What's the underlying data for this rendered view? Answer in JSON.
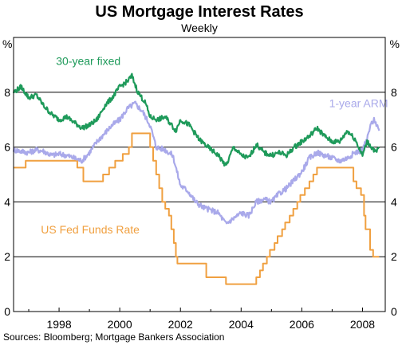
{
  "chart_data": {
    "type": "line",
    "title": "US Mortgage Interest Rates",
    "subtitle": "Weekly",
    "y_unit": "%",
    "ylim": [
      0,
      10
    ],
    "yticks": [
      "0",
      "2",
      "4",
      "6",
      "8"
    ],
    "xlim": [
      1996.5,
      2008.75
    ],
    "xticks": [
      {
        "x": 1998,
        "label": "1998"
      },
      {
        "x": 2000,
        "label": "2000"
      },
      {
        "x": 2002,
        "label": "2002"
      },
      {
        "x": 2004,
        "label": "2004"
      },
      {
        "x": 2006,
        "label": "2006"
      },
      {
        "x": 2008,
        "label": "2008"
      }
    ],
    "grid": true,
    "colors": {
      "fixed": "#1e9a5a",
      "arm": "#a9a9ea",
      "fed": "#f0a040",
      "grid": "#000000"
    },
    "series": [
      {
        "key": "fixed",
        "name": "30-year fixed",
        "jitter": 0.09,
        "points": [
          [
            1996.5,
            8.0
          ],
          [
            1996.75,
            8.2
          ],
          [
            1997.0,
            7.8
          ],
          [
            1997.25,
            7.9
          ],
          [
            1997.5,
            7.5
          ],
          [
            1997.75,
            7.2
          ],
          [
            1998.0,
            7.0
          ],
          [
            1998.25,
            7.1
          ],
          [
            1998.5,
            6.9
          ],
          [
            1998.75,
            6.7
          ],
          [
            1999.0,
            6.8
          ],
          [
            1999.25,
            7.0
          ],
          [
            1999.5,
            7.5
          ],
          [
            1999.75,
            7.8
          ],
          [
            2000.0,
            8.2
          ],
          [
            2000.25,
            8.4
          ],
          [
            2000.4,
            8.6
          ],
          [
            2000.6,
            8.0
          ],
          [
            2000.85,
            7.6
          ],
          [
            2001.0,
            7.1
          ],
          [
            2001.25,
            7.0
          ],
          [
            2001.5,
            7.1
          ],
          [
            2001.85,
            6.6
          ],
          [
            2002.0,
            7.0
          ],
          [
            2002.3,
            6.8
          ],
          [
            2002.6,
            6.3
          ],
          [
            2002.9,
            6.0
          ],
          [
            2003.25,
            5.7
          ],
          [
            2003.5,
            5.3
          ],
          [
            2003.75,
            6.0
          ],
          [
            2004.0,
            5.7
          ],
          [
            2004.25,
            5.6
          ],
          [
            2004.5,
            6.1
          ],
          [
            2004.75,
            5.8
          ],
          [
            2005.0,
            5.7
          ],
          [
            2005.25,
            5.8
          ],
          [
            2005.5,
            5.7
          ],
          [
            2005.75,
            6.0
          ],
          [
            2006.0,
            6.2
          ],
          [
            2006.25,
            6.4
          ],
          [
            2006.5,
            6.7
          ],
          [
            2006.75,
            6.4
          ],
          [
            2007.0,
            6.2
          ],
          [
            2007.25,
            6.2
          ],
          [
            2007.5,
            6.6
          ],
          [
            2007.75,
            6.3
          ],
          [
            2008.0,
            5.7
          ],
          [
            2008.15,
            6.2
          ],
          [
            2008.3,
            6.0
          ],
          [
            2008.45,
            5.8
          ],
          [
            2008.55,
            6.0
          ]
        ]
      },
      {
        "key": "arm",
        "name": "1-year ARM",
        "jitter": 0.1,
        "points": [
          [
            1996.5,
            5.9
          ],
          [
            1996.75,
            5.85
          ],
          [
            1997.0,
            5.8
          ],
          [
            1997.25,
            5.9
          ],
          [
            1997.5,
            5.85
          ],
          [
            1997.75,
            5.7
          ],
          [
            1998.0,
            5.75
          ],
          [
            1998.25,
            5.7
          ],
          [
            1998.5,
            5.6
          ],
          [
            1998.75,
            5.5
          ],
          [
            1999.0,
            5.8
          ],
          [
            1999.25,
            6.2
          ],
          [
            1999.5,
            6.5
          ],
          [
            1999.75,
            6.8
          ],
          [
            2000.0,
            7.0
          ],
          [
            2000.25,
            7.4
          ],
          [
            2000.5,
            7.6
          ],
          [
            2000.75,
            7.3
          ],
          [
            2001.0,
            6.8
          ],
          [
            2001.2,
            6.0
          ],
          [
            2001.5,
            5.9
          ],
          [
            2001.75,
            5.7
          ],
          [
            2002.0,
            4.6
          ],
          [
            2002.25,
            4.4
          ],
          [
            2002.5,
            4.0
          ],
          [
            2002.75,
            3.8
          ],
          [
            2003.0,
            3.7
          ],
          [
            2003.25,
            3.6
          ],
          [
            2003.5,
            3.2
          ],
          [
            2003.75,
            3.4
          ],
          [
            2004.0,
            3.6
          ],
          [
            2004.25,
            3.5
          ],
          [
            2004.5,
            4.0
          ],
          [
            2004.75,
            4.1
          ],
          [
            2005.0,
            4.0
          ],
          [
            2005.25,
            4.3
          ],
          [
            2005.5,
            4.5
          ],
          [
            2005.75,
            4.8
          ],
          [
            2006.0,
            5.1
          ],
          [
            2006.25,
            5.6
          ],
          [
            2006.5,
            5.8
          ],
          [
            2006.75,
            5.7
          ],
          [
            2007.0,
            5.6
          ],
          [
            2007.25,
            5.5
          ],
          [
            2007.5,
            5.6
          ],
          [
            2007.75,
            5.8
          ],
          [
            2008.0,
            5.9
          ],
          [
            2008.15,
            6.3
          ],
          [
            2008.3,
            6.9
          ],
          [
            2008.4,
            7.0
          ],
          [
            2008.55,
            6.6
          ]
        ]
      },
      {
        "key": "fed",
        "name": "US Fed Funds Rate",
        "step": true,
        "points": [
          [
            1996.5,
            5.25
          ],
          [
            1996.9,
            5.25
          ],
          [
            1996.9,
            5.5
          ],
          [
            1998.6,
            5.5
          ],
          [
            1998.6,
            5.25
          ],
          [
            1998.8,
            5.25
          ],
          [
            1998.8,
            4.75
          ],
          [
            1999.45,
            4.75
          ],
          [
            1999.45,
            5.0
          ],
          [
            1999.65,
            5.0
          ],
          [
            1999.65,
            5.25
          ],
          [
            1999.85,
            5.25
          ],
          [
            1999.85,
            5.5
          ],
          [
            2000.1,
            5.5
          ],
          [
            2000.1,
            5.75
          ],
          [
            2000.3,
            5.75
          ],
          [
            2000.3,
            6.0
          ],
          [
            2000.4,
            6.0
          ],
          [
            2000.4,
            6.5
          ],
          [
            2001.0,
            6.5
          ],
          [
            2001.0,
            6.0
          ],
          [
            2001.1,
            6.0
          ],
          [
            2001.1,
            5.5
          ],
          [
            2001.2,
            5.5
          ],
          [
            2001.2,
            5.0
          ],
          [
            2001.3,
            5.0
          ],
          [
            2001.3,
            4.5
          ],
          [
            2001.4,
            4.5
          ],
          [
            2001.4,
            4.0
          ],
          [
            2001.5,
            4.0
          ],
          [
            2001.5,
            3.75
          ],
          [
            2001.62,
            3.75
          ],
          [
            2001.62,
            3.5
          ],
          [
            2001.7,
            3.5
          ],
          [
            2001.7,
            3.0
          ],
          [
            2001.78,
            3.0
          ],
          [
            2001.78,
            2.5
          ],
          [
            2001.85,
            2.5
          ],
          [
            2001.85,
            2.0
          ],
          [
            2001.9,
            2.0
          ],
          [
            2001.9,
            1.75
          ],
          [
            2002.85,
            1.75
          ],
          [
            2002.85,
            1.25
          ],
          [
            2003.5,
            1.25
          ],
          [
            2003.5,
            1.0
          ],
          [
            2004.5,
            1.0
          ],
          [
            2004.5,
            1.25
          ],
          [
            2004.62,
            1.25
          ],
          [
            2004.62,
            1.5
          ],
          [
            2004.72,
            1.5
          ],
          [
            2004.72,
            1.75
          ],
          [
            2004.85,
            1.75
          ],
          [
            2004.85,
            2.0
          ],
          [
            2004.95,
            2.0
          ],
          [
            2004.95,
            2.25
          ],
          [
            2005.1,
            2.25
          ],
          [
            2005.1,
            2.5
          ],
          [
            2005.2,
            2.5
          ],
          [
            2005.2,
            2.75
          ],
          [
            2005.35,
            2.75
          ],
          [
            2005.35,
            3.0
          ],
          [
            2005.45,
            3.0
          ],
          [
            2005.45,
            3.25
          ],
          [
            2005.6,
            3.25
          ],
          [
            2005.6,
            3.5
          ],
          [
            2005.72,
            3.5
          ],
          [
            2005.72,
            3.75
          ],
          [
            2005.85,
            3.75
          ],
          [
            2005.85,
            4.0
          ],
          [
            2005.95,
            4.0
          ],
          [
            2005.95,
            4.25
          ],
          [
            2006.1,
            4.25
          ],
          [
            2006.1,
            4.5
          ],
          [
            2006.25,
            4.5
          ],
          [
            2006.25,
            4.75
          ],
          [
            2006.38,
            4.75
          ],
          [
            2006.38,
            5.0
          ],
          [
            2006.5,
            5.0
          ],
          [
            2006.5,
            5.25
          ],
          [
            2007.7,
            5.25
          ],
          [
            2007.7,
            4.75
          ],
          [
            2007.8,
            4.75
          ],
          [
            2007.8,
            4.5
          ],
          [
            2007.95,
            4.5
          ],
          [
            2007.95,
            4.25
          ],
          [
            2008.05,
            4.25
          ],
          [
            2008.05,
            3.5
          ],
          [
            2008.1,
            3.5
          ],
          [
            2008.1,
            3.0
          ],
          [
            2008.25,
            3.0
          ],
          [
            2008.25,
            2.25
          ],
          [
            2008.35,
            2.25
          ],
          [
            2008.35,
            2.0
          ],
          [
            2008.55,
            2.0
          ]
        ]
      }
    ],
    "labels": [
      {
        "key": "fixed",
        "text": "30-year fixed",
        "x": 1997.9,
        "y": 9.0
      },
      {
        "key": "arm",
        "text": "1-year ARM",
        "x": 2006.9,
        "y": 7.45
      },
      {
        "key": "fed",
        "text": "US Fed Funds Rate",
        "x": 1997.4,
        "y": 2.85
      }
    ],
    "source": "Sources: Bloomberg; Mortgage Bankers Association"
  }
}
